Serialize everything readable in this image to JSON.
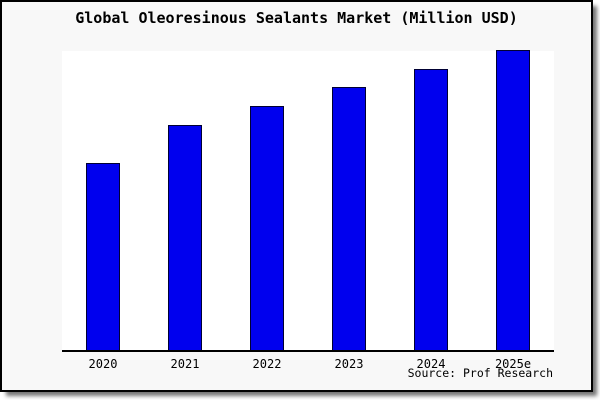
{
  "frame": {
    "background": "#f8f8f8",
    "border_color": "#000000",
    "plot_background": "#ffffff"
  },
  "chart_data": {
    "type": "bar",
    "title": "Global Oleoresinous Sealants Market (Million USD)",
    "categories": [
      "2020",
      "2021",
      "2022",
      "2023",
      "2024",
      "2025e"
    ],
    "values": [
      187,
      225,
      244,
      263,
      281,
      300
    ],
    "value_note": "y-axis has no tick labels or gridlines; values are relative units estimated from bar pixel heights (baseline 0 at x-axis)",
    "xlabel": "",
    "ylabel": "",
    "ylim": [
      0,
      301
    ],
    "grid": false,
    "legend": null,
    "bar_color": "#0000ee",
    "bar_border_color": "#000033",
    "axis_color": "#000000",
    "source": "Source: Prof Research"
  }
}
